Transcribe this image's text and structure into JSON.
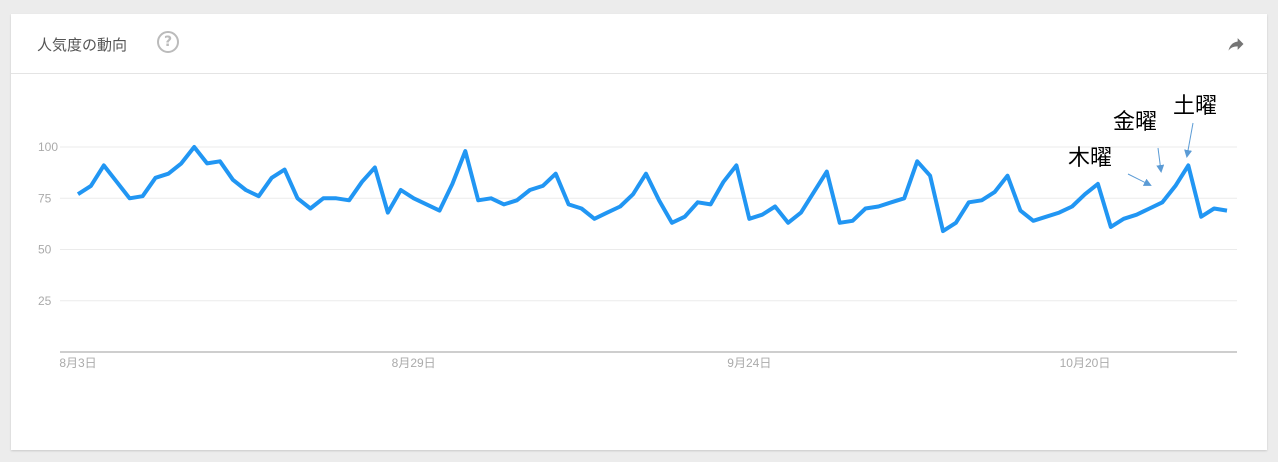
{
  "header": {
    "title": "人気度の動向",
    "help_icon": "help-circle-icon",
    "share_icon": "share-icon"
  },
  "chart_data": {
    "type": "line",
    "title": "",
    "xlabel": "",
    "ylabel": "",
    "ylim": [
      0,
      100
    ],
    "yticks": [
      "25",
      "50",
      "75",
      "100"
    ],
    "xtick_labels": [
      {
        "label": "8月3日",
        "index": 0
      },
      {
        "label": "8月29日",
        "index": 26
      },
      {
        "label": "9月24日",
        "index": 52
      },
      {
        "label": "10月20日",
        "index": 78
      }
    ],
    "grid": true,
    "line_color": "#2196f3",
    "series": [
      {
        "values": [
          77,
          81,
          91,
          83,
          75,
          76,
          85,
          87,
          92,
          100,
          92,
          93,
          84,
          79,
          76,
          85,
          89,
          75,
          70,
          75,
          75,
          74,
          83,
          90,
          68,
          79,
          75,
          72,
          69,
          82,
          98,
          74,
          75,
          72,
          74,
          79,
          81,
          87,
          72,
          70,
          65,
          68,
          71,
          77,
          87,
          74,
          63,
          66,
          73,
          72,
          83,
          91,
          65,
          67,
          71,
          63,
          68,
          78,
          88,
          63,
          64,
          70,
          71,
          73,
          75,
          93,
          86,
          59,
          63,
          73,
          74,
          78,
          86,
          69,
          64,
          66,
          68,
          71,
          77,
          82,
          61,
          65,
          67,
          70,
          73,
          81,
          91,
          66,
          70,
          69
        ]
      }
    ],
    "annotations": [
      {
        "text": "木曜",
        "index": 84
      },
      {
        "text": "金曜",
        "index": 85
      },
      {
        "text": "土曜",
        "index": 86
      }
    ]
  }
}
